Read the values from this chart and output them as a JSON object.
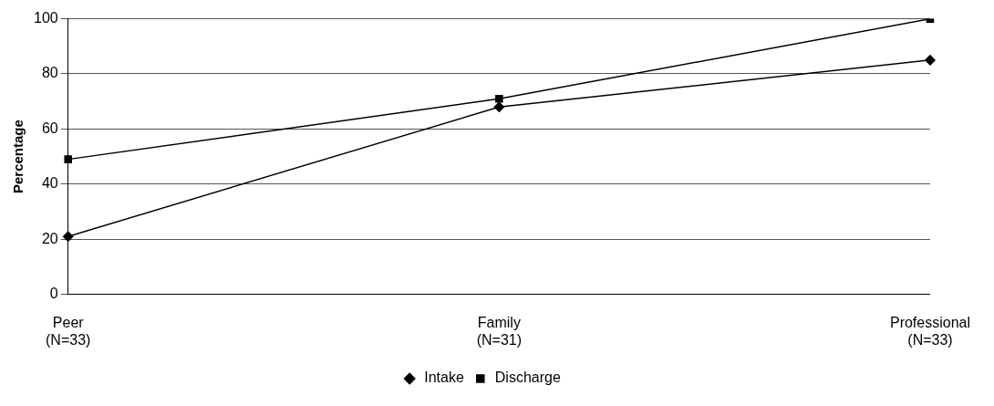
{
  "chart_data": {
    "type": "line",
    "ylabel": "Percentage",
    "categories": [
      "Peer\n(N=33)",
      "Family\n(N=31)",
      "Professional\n(N=33)"
    ],
    "series": [
      {
        "name": "Intake",
        "color": "#000000",
        "marker": "diamond",
        "values": [
          21,
          68,
          85
        ]
      },
      {
        "name": "Discharge",
        "color": "#000000",
        "marker": "square",
        "values": [
          49,
          71,
          100
        ]
      }
    ],
    "ylim": [
      0,
      100
    ],
    "yticks": [
      0,
      20,
      40,
      60,
      80,
      100
    ],
    "grid": "y",
    "legend": "bottom",
    "line_style": "solid"
  }
}
